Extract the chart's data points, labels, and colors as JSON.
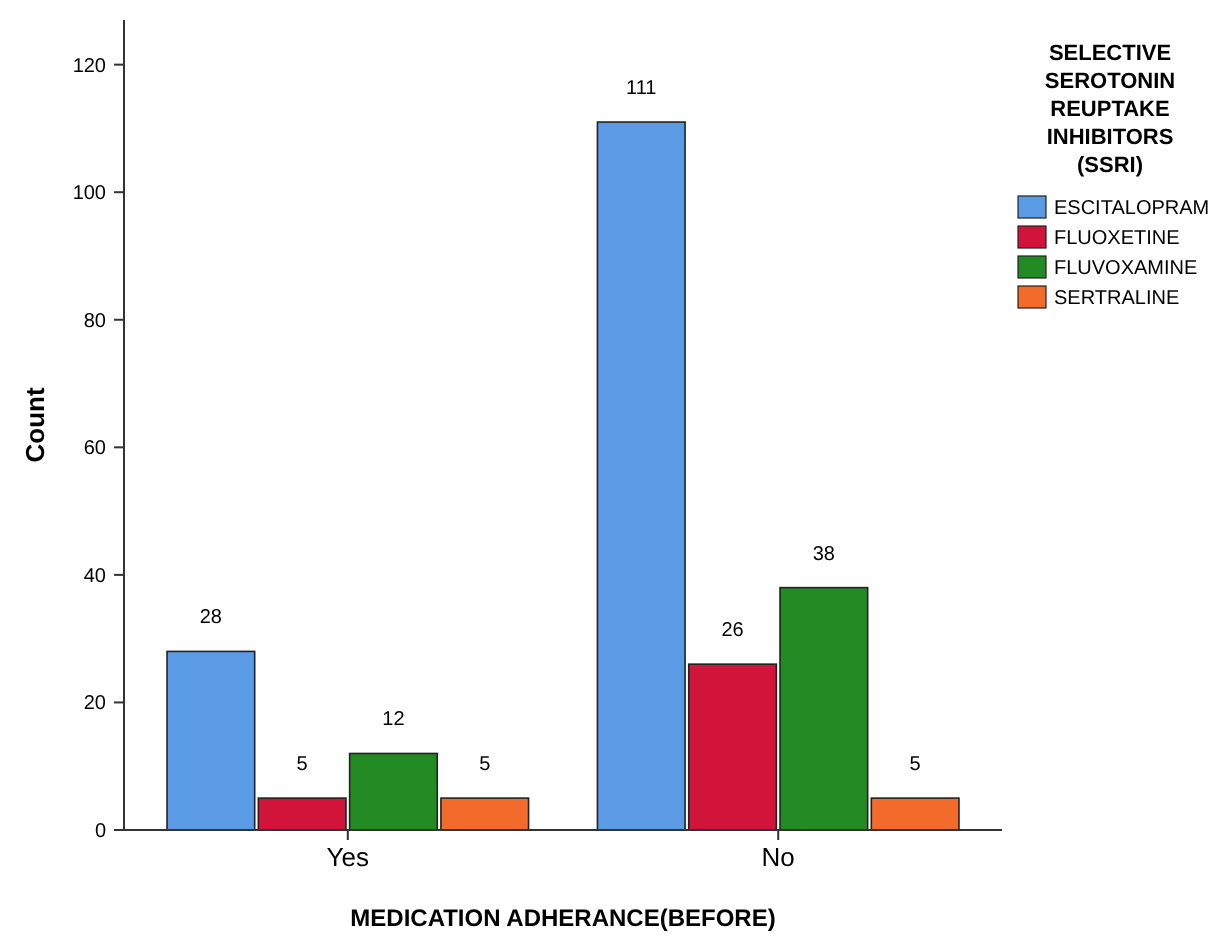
{
  "chart_data": {
    "type": "bar",
    "xlabel": "MEDICATION ADHERANCE(BEFORE)",
    "ylabel": "Count",
    "legend_title": "SELECTIVE SEROTONIN REUPTAKE INHIBITORS (SSRI)",
    "categories": [
      "Yes",
      "No"
    ],
    "series": [
      {
        "name": "ESCITALOPRAM",
        "color": "#5b9be6",
        "values": [
          28,
          111
        ]
      },
      {
        "name": "FLUOXETINE",
        "color": "#d2143a",
        "values": [
          5,
          26
        ]
      },
      {
        "name": "FLUVOXAMINE",
        "color": "#238b23",
        "values": [
          12,
          38
        ]
      },
      {
        "name": "SERTRALINE",
        "color": "#f26b2a",
        "values": [
          5,
          5
        ]
      }
    ],
    "ylim": [
      0,
      127
    ],
    "yticks": [
      0,
      20,
      40,
      60,
      80,
      100,
      120
    ],
    "data_labels": true,
    "legend": "right"
  }
}
